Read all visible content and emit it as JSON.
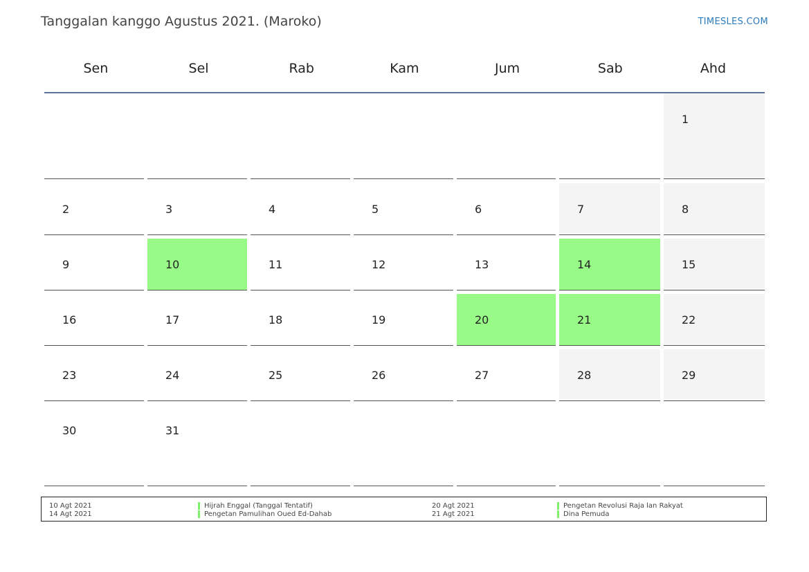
{
  "title": "Tanggalan kanggo Agustus 2021. (Maroko)",
  "site": "TIMESLES.COM",
  "weekdays": [
    "Sen",
    "Sel",
    "Rab",
    "Kam",
    "Jum",
    "Sab",
    "Ahd"
  ],
  "weeks": [
    [
      null,
      null,
      null,
      null,
      null,
      null,
      {
        "day": "1",
        "type": "weekend"
      }
    ],
    [
      {
        "day": "2"
      },
      {
        "day": "3"
      },
      {
        "day": "4"
      },
      {
        "day": "5"
      },
      {
        "day": "6"
      },
      {
        "day": "7",
        "type": "weekend"
      },
      {
        "day": "8",
        "type": "weekend"
      }
    ],
    [
      {
        "day": "9"
      },
      {
        "day": "10",
        "type": "holiday"
      },
      {
        "day": "11"
      },
      {
        "day": "12"
      },
      {
        "day": "13"
      },
      {
        "day": "14",
        "type": "holiday"
      },
      {
        "day": "15",
        "type": "weekend"
      }
    ],
    [
      {
        "day": "16"
      },
      {
        "day": "17"
      },
      {
        "day": "18"
      },
      {
        "day": "19"
      },
      {
        "day": "20",
        "type": "holiday"
      },
      {
        "day": "21",
        "type": "holiday"
      },
      {
        "day": "22",
        "type": "weekend"
      }
    ],
    [
      {
        "day": "23"
      },
      {
        "day": "24"
      },
      {
        "day": "25"
      },
      {
        "day": "26"
      },
      {
        "day": "27"
      },
      {
        "day": "28",
        "type": "weekend"
      },
      {
        "day": "29",
        "type": "weekend"
      }
    ],
    [
      {
        "day": "30"
      },
      {
        "day": "31"
      },
      null,
      null,
      null,
      null,
      null
    ]
  ],
  "colors": {
    "holiday": "#98fb88",
    "weekend": "#f4f4f4",
    "header_rule": "#5a7394",
    "link": "#2b7bbf"
  },
  "holidays": [
    {
      "date": "10 Agt 2021",
      "name": "Hijrah Enggal (Tanggal Tentatif)"
    },
    {
      "date": "14 Agt 2021",
      "name": "Pengetan Pamulihan Oued Ed-Dahab"
    },
    {
      "date": "20 Agt 2021",
      "name": "Pengetan Revolusi Raja lan Rakyat"
    },
    {
      "date": "21 Agt 2021",
      "name": "Dina Pemuda"
    }
  ]
}
